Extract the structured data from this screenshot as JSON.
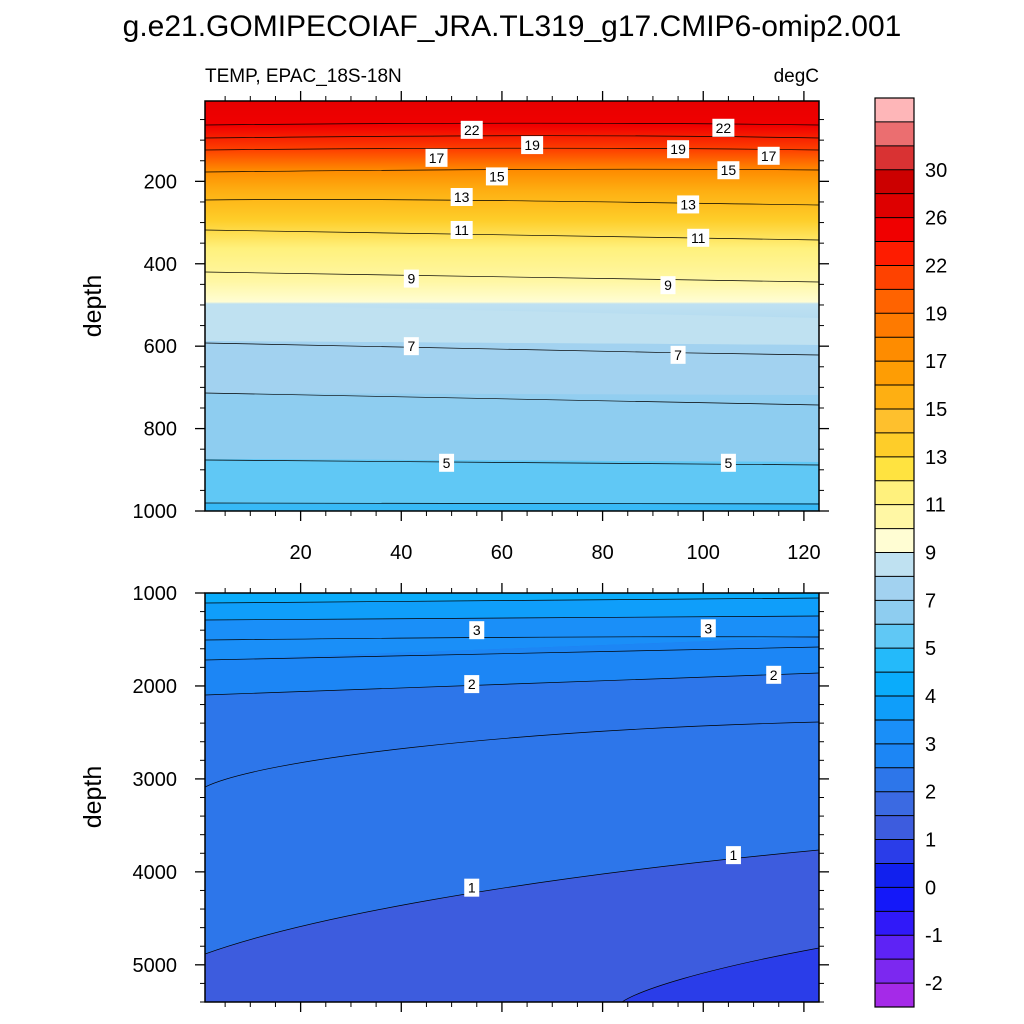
{
  "title": "g.e21.GOMIPECOIAF_JRA.TL319_g17.CMIP6-omip2.001",
  "chart_data": [
    {
      "type": "contour",
      "panel": "upper",
      "left_title": "TEMP, EPAC_18S-18N",
      "right_title": "degC",
      "ylabel": "depth",
      "xlabel": "",
      "xlim": [
        1,
        123
      ],
      "ylim": [
        1000,
        5
      ],
      "x_ticks": [
        20,
        40,
        60,
        80,
        100,
        120
      ],
      "x_tick_labels": [
        "20",
        "40",
        "60",
        "80",
        "100",
        "120"
      ],
      "y_ticks": [
        200,
        400,
        600,
        800,
        1000
      ],
      "y_tick_labels": [
        "200",
        "400",
        "600",
        "800",
        "1000"
      ],
      "contour_labels": [
        {
          "text": "22",
          "x": 54,
          "y": 75
        },
        {
          "text": "19",
          "x": 66,
          "y": 112
        },
        {
          "text": "17",
          "x": 47,
          "y": 143
        },
        {
          "text": "15",
          "x": 59,
          "y": 188
        },
        {
          "text": "13",
          "x": 52,
          "y": 238
        },
        {
          "text": "11",
          "x": 52,
          "y": 318
        },
        {
          "text": "9",
          "x": 42,
          "y": 436
        },
        {
          "text": "7",
          "x": 42,
          "y": 600
        },
        {
          "text": "5",
          "x": 49,
          "y": 883
        },
        {
          "text": "22",
          "x": 104,
          "y": 70
        },
        {
          "text": "19",
          "x": 95,
          "y": 122
        },
        {
          "text": "17",
          "x": 113,
          "y": 138
        },
        {
          "text": "15",
          "x": 105,
          "y": 173
        },
        {
          "text": "13",
          "x": 97,
          "y": 256
        },
        {
          "text": "11",
          "x": 99,
          "y": 337
        },
        {
          "text": "9",
          "x": 93,
          "y": 452
        },
        {
          "text": "7",
          "x": 95,
          "y": 621
        },
        {
          "text": "5",
          "x": 105,
          "y": 883
        }
      ]
    },
    {
      "type": "contour",
      "panel": "lower",
      "ylabel": "depth",
      "xlabel": "",
      "xlim": [
        1,
        123
      ],
      "ylim": [
        5400,
        1000
      ],
      "y_ticks": [
        1000,
        2000,
        3000,
        4000,
        5000
      ],
      "y_tick_labels": [
        "1000",
        "2000",
        "3000",
        "4000",
        "5000"
      ],
      "contour_labels": [
        {
          "text": "3",
          "x": 55,
          "y": 1400
        },
        {
          "text": "3",
          "x": 101,
          "y": 1380
        },
        {
          "text": "2",
          "x": 54,
          "y": 1980
        },
        {
          "text": "2",
          "x": 114,
          "y": 1880
        },
        {
          "text": "1",
          "x": 54,
          "y": 4170
        },
        {
          "text": "1",
          "x": 106,
          "y": 3820
        }
      ]
    }
  ],
  "colorbar": {
    "levels": [
      -2.5,
      -2,
      -1.5,
      -1,
      -0.5,
      0,
      0.5,
      1,
      1.5,
      2,
      2.5,
      3,
      3.5,
      4,
      4.5,
      5,
      6,
      7,
      8,
      9,
      10,
      11,
      12,
      13,
      14,
      15,
      16,
      17,
      18,
      19,
      20,
      22,
      24,
      26,
      28,
      30,
      32,
      34
    ],
    "labels": [
      "-2",
      "-1",
      "0",
      "1",
      "2",
      "3",
      "4",
      "5",
      "7",
      "9",
      "11",
      "13",
      "15",
      "17",
      "19",
      "22",
      "26",
      "30"
    ],
    "colors": [
      "#a52ae8",
      "#7c28f0",
      "#5e23f5",
      "#3019f9",
      "#1418f9",
      "#1120ee",
      "#2a3de9",
      "#3d5cde",
      "#3b6ae2",
      "#2d76ea",
      "#1c86f5",
      "#1a8ff8",
      "#0f9efa",
      "#0aacfb",
      "#24bafa",
      "#60c8f5",
      "#8ecdf0",
      "#a2d2f0",
      "#bfe1f1",
      "#fffdd3",
      "#fff7a4",
      "#fff17d",
      "#ffe340",
      "#fecd29",
      "#fec02d",
      "#feaf12",
      "#fe9d04",
      "#fe8c00",
      "#fe7a00",
      "#ff6300",
      "#fe4200",
      "#fe1c00",
      "#f00000",
      "#de0000",
      "#cc0000",
      "#d93233",
      "#eb6e70",
      "#feb6b8"
    ]
  }
}
